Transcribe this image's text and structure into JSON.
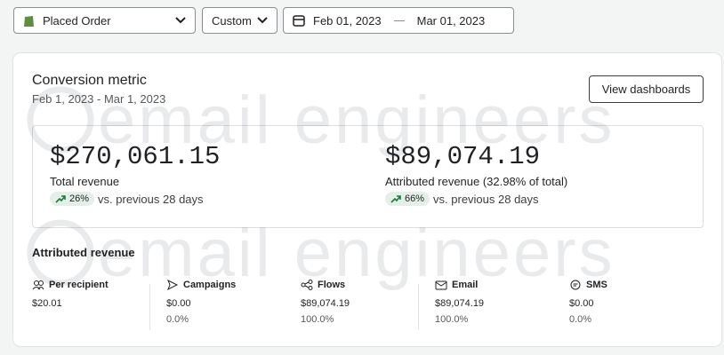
{
  "filters": {
    "metric": "Placed Order",
    "range_type": "Custom",
    "start_date": "Feb 01, 2023",
    "end_date": "Mar 01, 2023"
  },
  "card": {
    "title": "Conversion metric",
    "date_range": "Feb 1, 2023 - Mar 1, 2023",
    "button": "View dashboards",
    "summary": [
      {
        "value": "$270,061.15",
        "label": "Total revenue",
        "change": "26%",
        "comparison": "vs. previous 28 days"
      },
      {
        "value": "$89,074.19",
        "label": "Attributed revenue (32.98% of total)",
        "change": "66%",
        "comparison": "vs. previous 28 days"
      }
    ],
    "breakdown_title": "Attributed revenue",
    "breakdown": [
      {
        "name": "Per recipient",
        "value": "$20.01"
      },
      {
        "name": "Campaigns",
        "value": "$0.00",
        "share": "0.0%"
      },
      {
        "name": "Flows",
        "value": "$89,074.19",
        "share": "100.0%"
      },
      {
        "name": "Email",
        "value": "$89,074.19",
        "share": "100.0%"
      },
      {
        "name": "SMS",
        "value": "$0.00",
        "share": "0.0%"
      }
    ]
  },
  "watermark": "email engineers"
}
